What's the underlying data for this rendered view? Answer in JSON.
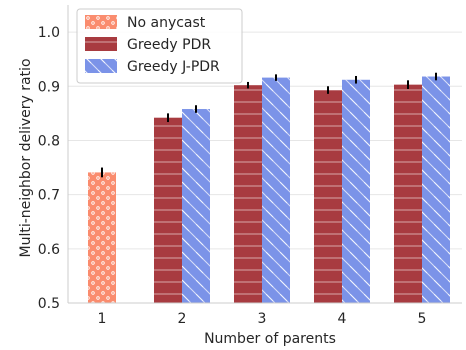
{
  "chart_data": {
    "type": "bar",
    "xlabel": "Number of parents",
    "ylabel": "Multi-neighbor delivery ratio",
    "categories": [
      "1",
      "2",
      "3",
      "4",
      "5"
    ],
    "ylim": [
      0.5,
      1.05
    ],
    "yticks": [
      "0.5",
      "0.6",
      "0.7",
      "0.8",
      "0.9",
      "1.0"
    ],
    "grid": true,
    "legend_position": "top-left",
    "series": [
      {
        "name": "No anycast",
        "color": "#fa8c6e",
        "pattern": "dots",
        "values": [
          0.741,
          null,
          null,
          null,
          null
        ],
        "errors": [
          0.009,
          null,
          null,
          null,
          null
        ]
      },
      {
        "name": "Greedy PDR",
        "color": "#a83b40",
        "pattern": "horizontal-lines",
        "values": [
          null,
          0.842,
          0.902,
          0.893,
          0.903
        ],
        "errors": [
          null,
          0.008,
          0.006,
          0.007,
          0.008
        ]
      },
      {
        "name": "Greedy J-PDR",
        "color": "#7b93e8",
        "pattern": "diagonal-lines",
        "values": [
          null,
          0.858,
          0.916,
          0.912,
          0.918
        ],
        "errors": [
          null,
          0.007,
          0.006,
          0.007,
          0.007
        ]
      }
    ]
  }
}
